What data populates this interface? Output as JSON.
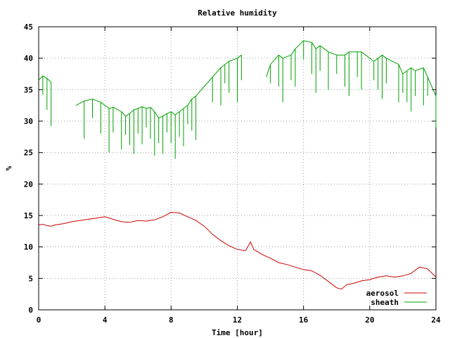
{
  "chart_data": {
    "type": "line",
    "title": "Relative humidity",
    "xlabel": "Time [hour]",
    "ylabel": "%",
    "xlim": [
      0,
      24
    ],
    "ylim": [
      0,
      45
    ],
    "xticks": [
      0,
      4,
      8,
      12,
      16,
      20,
      24
    ],
    "yticks": [
      0,
      5,
      10,
      15,
      20,
      25,
      30,
      35,
      40,
      45
    ],
    "grid": true,
    "legend_position": "bottom-right",
    "series": [
      {
        "name": "aerosol",
        "color": "#cc0000",
        "style": "line",
        "x": [
          0,
          0.25,
          0.5,
          0.75,
          1,
          1.5,
          2,
          2.5,
          3,
          3.5,
          4,
          4.5,
          5,
          5.5,
          6,
          6.5,
          7,
          7.5,
          8,
          8.5,
          9,
          9.5,
          10,
          10.5,
          11,
          11.5,
          12,
          12.5,
          12.8,
          13,
          13.5,
          14,
          14.5,
          15,
          15.5,
          16,
          16.5,
          17,
          17.5,
          18,
          18.3,
          18.6,
          19,
          19.5,
          20,
          20.5,
          21,
          21.5,
          22,
          22.5,
          23,
          23.5,
          24
        ],
        "y": [
          13.5,
          13.6,
          13.4,
          13.3,
          13.5,
          13.7,
          14.0,
          14.2,
          14.4,
          14.6,
          14.8,
          14.4,
          14.0,
          13.9,
          14.2,
          14.1,
          14.3,
          14.8,
          15.5,
          15.4,
          14.8,
          14.2,
          13.3,
          12.0,
          11.0,
          10.2,
          9.6,
          9.4,
          10.8,
          9.6,
          8.8,
          8.2,
          7.5,
          7.2,
          6.8,
          6.4,
          6.2,
          5.5,
          4.5,
          3.5,
          3.3,
          4.0,
          4.2,
          4.6,
          4.8,
          5.2,
          5.4,
          5.2,
          5.4,
          5.8,
          6.8,
          6.5,
          5.2
        ]
      },
      {
        "name": "sheath",
        "color": "#00a000",
        "style": "segments",
        "x": [
          0,
          0.25,
          0.5,
          0.75,
          2.25,
          2.75,
          3.25,
          3.75,
          4.25,
          4.5,
          5,
          5.25,
          5.5,
          5.75,
          6,
          6.25,
          6.5,
          6.75,
          7,
          7.25,
          7.5,
          7.75,
          8,
          8.25,
          8.5,
          8.75,
          9,
          9.25,
          9.5,
          10.5,
          11,
          11.25,
          11.5,
          12,
          12.25,
          13.75,
          14,
          14.5,
          14.75,
          15.25,
          15.5,
          16,
          16.5,
          16.75,
          17,
          17.5,
          18,
          18.5,
          18.75,
          19.25,
          19.5,
          20.25,
          20.5,
          20.75,
          21,
          21.75,
          22,
          22.25,
          22.5,
          22.75,
          23.25,
          23.5,
          24
        ],
        "y": [
          36.5,
          37.2,
          36.8,
          36.2,
          32.5,
          33.2,
          33.5,
          33.0,
          32.0,
          32.2,
          31.5,
          30.8,
          31.2,
          31.8,
          32.0,
          32.3,
          32.0,
          32.2,
          31.5,
          30.5,
          30.8,
          31.2,
          31.5,
          31.0,
          31.5,
          32.0,
          32.5,
          33.5,
          34.0,
          37.0,
          38.5,
          39.0,
          39.5,
          40.0,
          40.5,
          37.0,
          39.0,
          40.5,
          40.0,
          40.5,
          41.5,
          42.8,
          42.5,
          41.5,
          42.0,
          41.0,
          40.5,
          40.5,
          41.0,
          41.0,
          41.0,
          39.5,
          40.0,
          40.5,
          40.0,
          39.0,
          37.5,
          38.0,
          38.5,
          38.0,
          38.5,
          37.0,
          34.0
        ]
      }
    ]
  }
}
